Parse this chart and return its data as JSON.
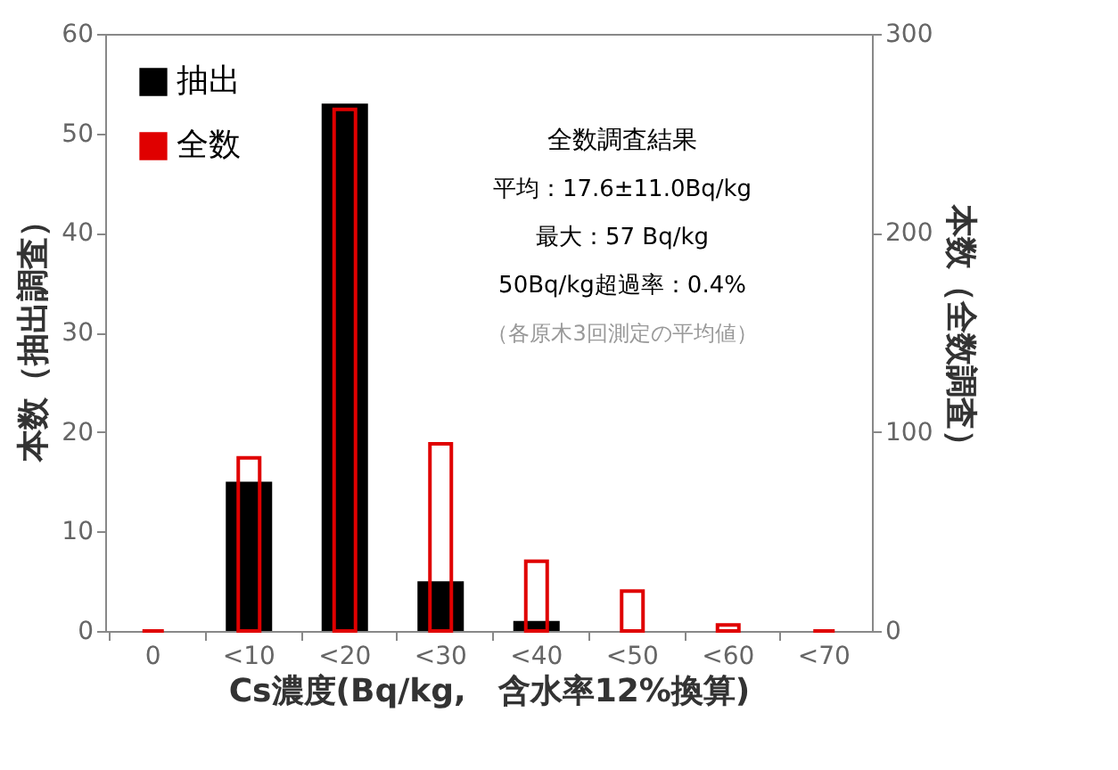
{
  "chart_data": {
    "type": "bar",
    "categories": [
      "0",
      "<10",
      "<20",
      "<30",
      "<40",
      "<50",
      "<60",
      "<70"
    ],
    "xlabel": "Cs濃度(Bq/kg,　含水率12%換算)",
    "ylabel": "本数（抽出調査）",
    "y2label": "本数（全数調査）",
    "series": [
      {
        "name": "抽出",
        "color": "#000000",
        "values": [
          0,
          15,
          53,
          5,
          1,
          0,
          0,
          0
        ]
      },
      {
        "name": "全数",
        "color": "#e00000",
        "axis": "y2",
        "values": [
          0,
          87,
          262,
          94,
          35,
          20,
          3,
          0
        ]
      }
    ],
    "ylim": [
      0,
      60
    ],
    "yticks": [
      0,
      10,
      20,
      30,
      40,
      50,
      60
    ],
    "y2lim": [
      0,
      300
    ],
    "y2ticks": [
      0,
      100,
      200,
      300
    ],
    "grid": false,
    "legend": "top left",
    "annotations": [
      "全数調査結果",
      "平均：17.6±11.0Bq/kg",
      "最大：57 Bq/kg",
      "50Bq/kg超過率：0.4%",
      "（各原木3回測定の平均値）"
    ]
  }
}
